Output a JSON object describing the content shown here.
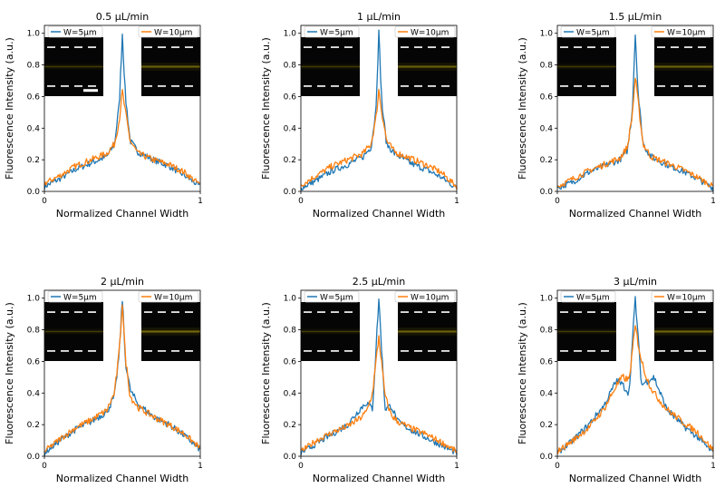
{
  "figure": {
    "x_axis_label": "Normalized Channel Width",
    "y_axis_label": "Fluorescence Intensity (a.u.)"
  },
  "colors": {
    "w5": "#1f77b4",
    "w10": "#ff7f0e"
  },
  "chart_data": [
    {
      "type": "line",
      "title": "0.5 μL/min",
      "xlabel": "Normalized Channel Width",
      "ylabel": "Fluorescence Intensity (a.u.)",
      "xlim": [
        0,
        1
      ],
      "ylim": [
        0,
        1.05
      ],
      "xticks": [
        "0",
        "1"
      ],
      "yticks": [
        "0.0",
        "0.2",
        "0.4",
        "0.6",
        "0.8",
        "1.0"
      ],
      "legend": "inset",
      "series": [
        {
          "name": "W=5μm",
          "peak": 1.0,
          "x": [
            0,
            0.1,
            0.2,
            0.3,
            0.4,
            0.45,
            0.48,
            0.5,
            0.52,
            0.55,
            0.6,
            0.7,
            0.8,
            0.9,
            1
          ],
          "y": [
            0.03,
            0.08,
            0.14,
            0.18,
            0.22,
            0.3,
            0.55,
            1.0,
            0.6,
            0.32,
            0.25,
            0.2,
            0.16,
            0.1,
            0.03
          ]
        },
        {
          "name": "W=10μm",
          "peak": 0.63,
          "x": [
            0,
            0.1,
            0.2,
            0.3,
            0.4,
            0.45,
            0.48,
            0.5,
            0.52,
            0.55,
            0.6,
            0.7,
            0.8,
            0.9,
            1
          ],
          "y": [
            0.05,
            0.1,
            0.16,
            0.2,
            0.24,
            0.3,
            0.45,
            0.63,
            0.5,
            0.32,
            0.24,
            0.2,
            0.17,
            0.12,
            0.04
          ]
        }
      ]
    },
    {
      "type": "line",
      "title": "1 μL/min",
      "xlabel": "Normalized Channel Width",
      "ylabel": "Fluorescence Intensity (a.u.)",
      "xlim": [
        0,
        1
      ],
      "ylim": [
        0,
        1.05
      ],
      "xticks": [
        "0",
        "1"
      ],
      "yticks": [
        "0.0",
        "0.2",
        "0.4",
        "0.6",
        "0.8",
        "1.0"
      ],
      "legend": "inset",
      "series": [
        {
          "name": "W=5μm",
          "peak": 1.0,
          "x": [
            0,
            0.1,
            0.2,
            0.3,
            0.4,
            0.45,
            0.48,
            0.5,
            0.52,
            0.55,
            0.6,
            0.7,
            0.8,
            0.9,
            1
          ],
          "y": [
            0.02,
            0.07,
            0.13,
            0.17,
            0.22,
            0.28,
            0.5,
            1.0,
            0.55,
            0.3,
            0.24,
            0.18,
            0.14,
            0.09,
            0.02
          ]
        },
        {
          "name": "W=10μm",
          "peak": 0.64,
          "x": [
            0,
            0.1,
            0.2,
            0.3,
            0.4,
            0.45,
            0.48,
            0.5,
            0.52,
            0.55,
            0.6,
            0.7,
            0.8,
            0.9,
            1
          ],
          "y": [
            0.04,
            0.1,
            0.16,
            0.2,
            0.24,
            0.3,
            0.45,
            0.64,
            0.5,
            0.32,
            0.25,
            0.21,
            0.17,
            0.12,
            0.03
          ]
        }
      ]
    },
    {
      "type": "line",
      "title": "1.5 μL/min",
      "xlabel": "Normalized Channel Width",
      "ylabel": "Fluorescence Intensity (a.u.)",
      "xlim": [
        0,
        1
      ],
      "ylim": [
        0,
        1.05
      ],
      "xticks": [
        "0",
        "1"
      ],
      "yticks": [
        "0.0",
        "0.2",
        "0.4",
        "0.6",
        "0.8",
        "1.0"
      ],
      "legend": "inset",
      "series": [
        {
          "name": "W=5μm",
          "peak": 1.0,
          "x": [
            0,
            0.1,
            0.2,
            0.3,
            0.4,
            0.45,
            0.48,
            0.5,
            0.52,
            0.55,
            0.6,
            0.7,
            0.8,
            0.9,
            1
          ],
          "y": [
            0.02,
            0.06,
            0.12,
            0.16,
            0.2,
            0.26,
            0.5,
            1.0,
            0.6,
            0.3,
            0.22,
            0.17,
            0.13,
            0.08,
            0.02
          ]
        },
        {
          "name": "W=10μm",
          "peak": 0.72,
          "x": [
            0,
            0.1,
            0.2,
            0.3,
            0.4,
            0.45,
            0.48,
            0.5,
            0.52,
            0.55,
            0.6,
            0.7,
            0.8,
            0.9,
            1
          ],
          "y": [
            0.03,
            0.08,
            0.13,
            0.17,
            0.21,
            0.28,
            0.48,
            0.72,
            0.55,
            0.3,
            0.22,
            0.18,
            0.14,
            0.09,
            0.03
          ]
        }
      ]
    },
    {
      "type": "line",
      "title": "2 μL/min",
      "xlabel": "Normalized Channel Width",
      "ylabel": "Fluorescence Intensity (a.u.)",
      "xlim": [
        0,
        1
      ],
      "ylim": [
        0,
        1.05
      ],
      "xticks": [
        "0",
        "1"
      ],
      "yticks": [
        "0.0",
        "0.2",
        "0.4",
        "0.6",
        "0.8",
        "1.0"
      ],
      "legend": "inset",
      "series": [
        {
          "name": "W=5μm",
          "peak": 1.0,
          "x": [
            0,
            0.1,
            0.2,
            0.3,
            0.4,
            0.45,
            0.48,
            0.5,
            0.52,
            0.55,
            0.6,
            0.7,
            0.8,
            0.9,
            1
          ],
          "y": [
            0.02,
            0.1,
            0.17,
            0.22,
            0.28,
            0.38,
            0.65,
            1.0,
            0.6,
            0.42,
            0.33,
            0.25,
            0.2,
            0.13,
            0.04
          ]
        },
        {
          "name": "W=10μm",
          "peak": 0.98,
          "x": [
            0,
            0.1,
            0.2,
            0.3,
            0.4,
            0.45,
            0.48,
            0.5,
            0.52,
            0.55,
            0.6,
            0.7,
            0.8,
            0.9,
            1
          ],
          "y": [
            0.03,
            0.11,
            0.18,
            0.23,
            0.29,
            0.4,
            0.66,
            0.98,
            0.62,
            0.38,
            0.31,
            0.25,
            0.2,
            0.14,
            0.05
          ]
        }
      ]
    },
    {
      "type": "line",
      "title": "2.5 μL/min",
      "xlabel": "Normalized Channel Width",
      "ylabel": "Fluorescence Intensity (a.u.)",
      "xlim": [
        0,
        1
      ],
      "ylim": [
        0,
        1.05
      ],
      "xticks": [
        "0",
        "1"
      ],
      "yticks": [
        "0.0",
        "0.2",
        "0.4",
        "0.6",
        "0.8",
        "1.0"
      ],
      "legend": "inset",
      "series": [
        {
          "name": "W=5μm",
          "peak": 1.0,
          "x": [
            0,
            0.1,
            0.2,
            0.3,
            0.38,
            0.42,
            0.46,
            0.5,
            0.54,
            0.58,
            0.62,
            0.7,
            0.8,
            0.9,
            1
          ],
          "y": [
            0.02,
            0.08,
            0.14,
            0.2,
            0.3,
            0.34,
            0.3,
            1.0,
            0.3,
            0.32,
            0.22,
            0.17,
            0.12,
            0.07,
            0.02
          ]
        },
        {
          "name": "W=10μm",
          "peak": 0.76,
          "x": [
            0,
            0.1,
            0.2,
            0.3,
            0.38,
            0.42,
            0.46,
            0.5,
            0.54,
            0.58,
            0.62,
            0.7,
            0.8,
            0.9,
            1
          ],
          "y": [
            0.03,
            0.1,
            0.15,
            0.19,
            0.24,
            0.28,
            0.4,
            0.76,
            0.38,
            0.26,
            0.22,
            0.18,
            0.14,
            0.09,
            0.03
          ]
        }
      ]
    },
    {
      "type": "line",
      "title": "3 μL/min",
      "xlabel": "Normalized Channel Width",
      "ylabel": "Fluorescence Intensity (a.u.)",
      "xlim": [
        0,
        1
      ],
      "ylim": [
        0,
        1.05
      ],
      "xticks": [
        "0",
        "1"
      ],
      "yticks": [
        "0.0",
        "0.2",
        "0.4",
        "0.6",
        "0.8",
        "1.0"
      ],
      "legend": "inset",
      "series": [
        {
          "name": "W=5μm",
          "peak": 1.0,
          "x": [
            0,
            0.1,
            0.2,
            0.3,
            0.38,
            0.42,
            0.46,
            0.5,
            0.54,
            0.58,
            0.62,
            0.7,
            0.8,
            0.9,
            1
          ],
          "y": [
            0.02,
            0.1,
            0.2,
            0.32,
            0.48,
            0.45,
            0.4,
            1.0,
            0.45,
            0.48,
            0.5,
            0.3,
            0.2,
            0.12,
            0.02
          ]
        },
        {
          "name": "W=10μm",
          "peak": 0.82,
          "x": [
            0,
            0.1,
            0.2,
            0.3,
            0.38,
            0.42,
            0.46,
            0.5,
            0.54,
            0.58,
            0.62,
            0.7,
            0.8,
            0.9,
            1
          ],
          "y": [
            0.03,
            0.1,
            0.18,
            0.3,
            0.45,
            0.5,
            0.48,
            0.82,
            0.6,
            0.48,
            0.4,
            0.3,
            0.22,
            0.15,
            0.04
          ]
        }
      ]
    }
  ]
}
